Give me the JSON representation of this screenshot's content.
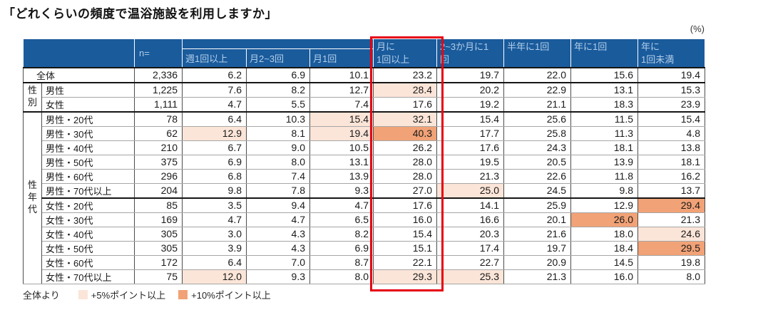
{
  "colors": {
    "header_bg": "#1a5b9c",
    "header_text": "#b3cfe9",
    "hl_plus5": "#fbe5d8",
    "hl_plus10": "#f1a276",
    "frame_red": "#e60012"
  },
  "unit_label": "(%)",
  "chart_data": {
    "type": "table",
    "title": "「どれくらいの頻度で温浴施設を利用しますか」",
    "unit": "(%)",
    "header": {
      "n": "n=",
      "sub": [
        "週1回以上",
        "月2~3回",
        "月1回"
      ],
      "spanning": [
        "月に\n1回以上",
        "2~3か月に1\n回",
        "半年に1回",
        "年に1回",
        "年に\n1回未満"
      ]
    },
    "columns": [
      "n=",
      "週1回以上",
      "月2~3回",
      "月1回",
      "月に1回以上",
      "2~3か月に1回",
      "半年に1回",
      "年に1回",
      "年に1回未満"
    ],
    "highlighted_column": "月に1回以上",
    "row_groups": [
      "全体",
      "性別",
      "性年代"
    ],
    "rows": [
      {
        "label": "全体",
        "label_span": 2,
        "n": "2,336",
        "values": [
          "6.2",
          "6.9",
          "10.1",
          "23.2",
          "19.7",
          "22.0",
          "15.6",
          "19.4"
        ],
        "hl": [
          0,
          0,
          0,
          0,
          0,
          0,
          0,
          0
        ],
        "group_end": true
      },
      {
        "group": "性別",
        "group_span": 2,
        "label": "男性",
        "n": "1,225",
        "values": [
          "7.6",
          "8.2",
          "12.7",
          "28.4",
          "20.2",
          "22.9",
          "13.1",
          "15.3"
        ],
        "hl": [
          0,
          0,
          0,
          1,
          0,
          0,
          0,
          0
        ]
      },
      {
        "label": "女性",
        "n": "1,111",
        "values": [
          "4.7",
          "5.5",
          "7.4",
          "17.6",
          "19.2",
          "21.1",
          "18.3",
          "23.9"
        ],
        "hl": [
          0,
          0,
          0,
          0,
          0,
          0,
          0,
          0
        ],
        "group_end": true
      },
      {
        "group": "性年代",
        "group_span": 12,
        "label": "男性・20代",
        "n": "78",
        "values": [
          "6.4",
          "10.3",
          "15.4",
          "32.1",
          "15.4",
          "25.6",
          "11.5",
          "15.4"
        ],
        "hl": [
          0,
          0,
          1,
          1,
          0,
          0,
          0,
          0
        ]
      },
      {
        "label": "男性・30代",
        "n": "62",
        "values": [
          "12.9",
          "8.1",
          "19.4",
          "40.3",
          "17.7",
          "25.8",
          "11.3",
          "4.8"
        ],
        "hl": [
          1,
          0,
          1,
          2,
          0,
          0,
          0,
          0
        ]
      },
      {
        "label": "男性・40代",
        "n": "210",
        "values": [
          "6.7",
          "9.0",
          "10.5",
          "26.2",
          "17.6",
          "24.3",
          "18.1",
          "13.8"
        ],
        "hl": [
          0,
          0,
          0,
          0,
          0,
          0,
          0,
          0
        ]
      },
      {
        "label": "男性・50代",
        "n": "375",
        "values": [
          "6.9",
          "8.0",
          "13.1",
          "28.0",
          "19.5",
          "20.5",
          "13.9",
          "18.1"
        ],
        "hl": [
          0,
          0,
          0,
          0,
          0,
          0,
          0,
          0
        ]
      },
      {
        "label": "男性・60代",
        "n": "296",
        "values": [
          "6.8",
          "7.4",
          "13.9",
          "28.0",
          "21.3",
          "22.6",
          "11.8",
          "16.2"
        ],
        "hl": [
          0,
          0,
          0,
          0,
          0,
          0,
          0,
          0
        ]
      },
      {
        "label": "男性・70代以上",
        "n": "204",
        "values": [
          "9.8",
          "7.8",
          "9.3",
          "27.0",
          "25.0",
          "24.5",
          "9.8",
          "13.7"
        ],
        "hl": [
          0,
          0,
          0,
          0,
          1,
          0,
          0,
          0
        ],
        "group_end": true
      },
      {
        "label": "女性・20代",
        "n": "85",
        "values": [
          "3.5",
          "9.4",
          "4.7",
          "17.6",
          "14.1",
          "25.9",
          "12.9",
          "29.4"
        ],
        "hl": [
          0,
          0,
          0,
          0,
          0,
          0,
          0,
          2
        ]
      },
      {
        "label": "女性・30代",
        "n": "169",
        "values": [
          "4.7",
          "4.7",
          "6.5",
          "16.0",
          "16.6",
          "20.1",
          "26.0",
          "21.3"
        ],
        "hl": [
          0,
          0,
          0,
          0,
          0,
          0,
          2,
          0
        ]
      },
      {
        "label": "女性・40代",
        "n": "305",
        "values": [
          "3.0",
          "4.3",
          "8.2",
          "15.4",
          "20.3",
          "21.6",
          "18.0",
          "24.6"
        ],
        "hl": [
          0,
          0,
          0,
          0,
          0,
          0,
          0,
          1
        ]
      },
      {
        "label": "女性・50代",
        "n": "305",
        "values": [
          "3.9",
          "4.3",
          "6.9",
          "15.1",
          "17.4",
          "19.7",
          "18.4",
          "29.5"
        ],
        "hl": [
          0,
          0,
          0,
          0,
          0,
          0,
          0,
          2
        ]
      },
      {
        "label": "女性・60代",
        "n": "172",
        "values": [
          "6.4",
          "7.0",
          "8.7",
          "22.1",
          "22.7",
          "20.9",
          "14.5",
          "19.8"
        ],
        "hl": [
          0,
          0,
          0,
          0,
          0,
          0,
          0,
          0
        ]
      },
      {
        "label": "女性・70代以上",
        "n": "75",
        "values": [
          "12.0",
          "9.3",
          "8.0",
          "29.3",
          "25.3",
          "21.3",
          "16.0",
          "8.0"
        ],
        "hl": [
          1,
          0,
          0,
          1,
          1,
          0,
          0,
          0
        ]
      }
    ],
    "legend": {
      "prefix": "全体より",
      "items": [
        {
          "label": "+5%ポイント以上",
          "level": "plus5"
        },
        {
          "label": "+10%ポイント以上",
          "level": "plus10"
        }
      ]
    }
  }
}
